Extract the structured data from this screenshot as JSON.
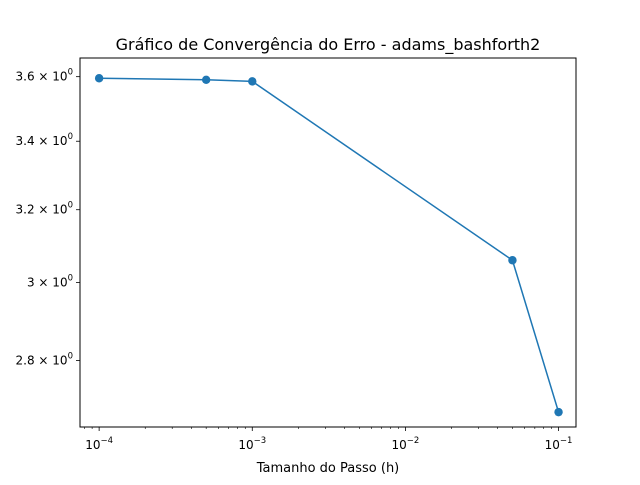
{
  "chart_data": {
    "type": "line",
    "title": "Gráfico de Convergência do Erro - adams_bashforth2",
    "xlabel": "Tamanho do Passo (h)",
    "ylabel": "",
    "x_scale": "log",
    "y_scale": "log",
    "xlim": [
      7.5e-05,
      0.13
    ],
    "ylim": [
      2.64,
      3.66
    ],
    "grid": false,
    "x_ticks": [
      {
        "value": 0.0001,
        "base": "10",
        "exp": "−4"
      },
      {
        "value": 0.001,
        "base": "10",
        "exp": "−3"
      },
      {
        "value": 0.01,
        "base": "10",
        "exp": "−2"
      },
      {
        "value": 0.1,
        "base": "10",
        "exp": "−1"
      }
    ],
    "y_ticks": [
      {
        "value": 2.8,
        "mantissa": "2.8 × 10",
        "exp": "0"
      },
      {
        "value": 3.0,
        "mantissa": "3 × 10",
        "exp": "0"
      },
      {
        "value": 3.2,
        "mantissa": "3.2 × 10",
        "exp": "0"
      },
      {
        "value": 3.4,
        "mantissa": "3.4 × 10",
        "exp": "0"
      },
      {
        "value": 3.6,
        "mantissa": "3.6 × 10",
        "exp": "0"
      }
    ],
    "series": [
      {
        "color": "#1f77b4",
        "marker": "circle",
        "x": [
          0.0001,
          0.0005,
          0.001,
          0.05,
          0.1
        ],
        "y": [
          3.595,
          3.59,
          3.585,
          3.06,
          2.675
        ]
      }
    ]
  }
}
